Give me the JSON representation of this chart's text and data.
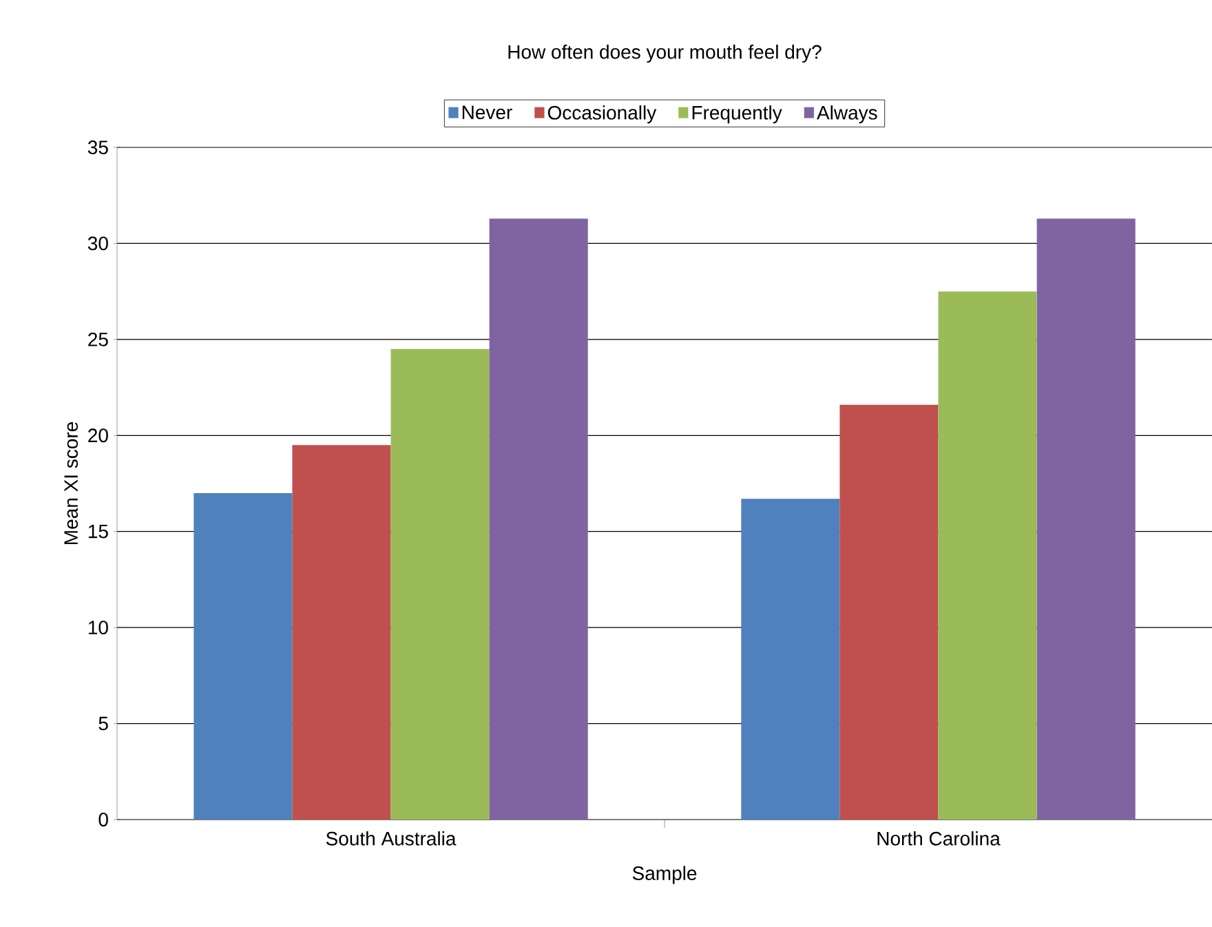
{
  "chart_data": {
    "type": "bar",
    "title": "How often does your mouth feel dry?",
    "xlabel": "Sample",
    "ylabel": "Mean XI score",
    "categories": [
      "South Australia",
      "North Carolina"
    ],
    "series": [
      {
        "name": "Never",
        "color": "#4f81bd",
        "values": [
          17.0,
          16.7
        ]
      },
      {
        "name": "Occasionally",
        "color": "#c0504d",
        "values": [
          19.5,
          21.6
        ]
      },
      {
        "name": "Frequently",
        "color": "#9bbb59",
        "values": [
          24.5,
          27.5
        ]
      },
      {
        "name": "Always",
        "color": "#8064a2",
        "values": [
          31.3,
          31.3
        ]
      }
    ],
    "ylim": [
      0,
      35
    ],
    "yticks": [
      0,
      5,
      10,
      15,
      20,
      25,
      30,
      35
    ],
    "grid": "y",
    "legend": "top"
  }
}
